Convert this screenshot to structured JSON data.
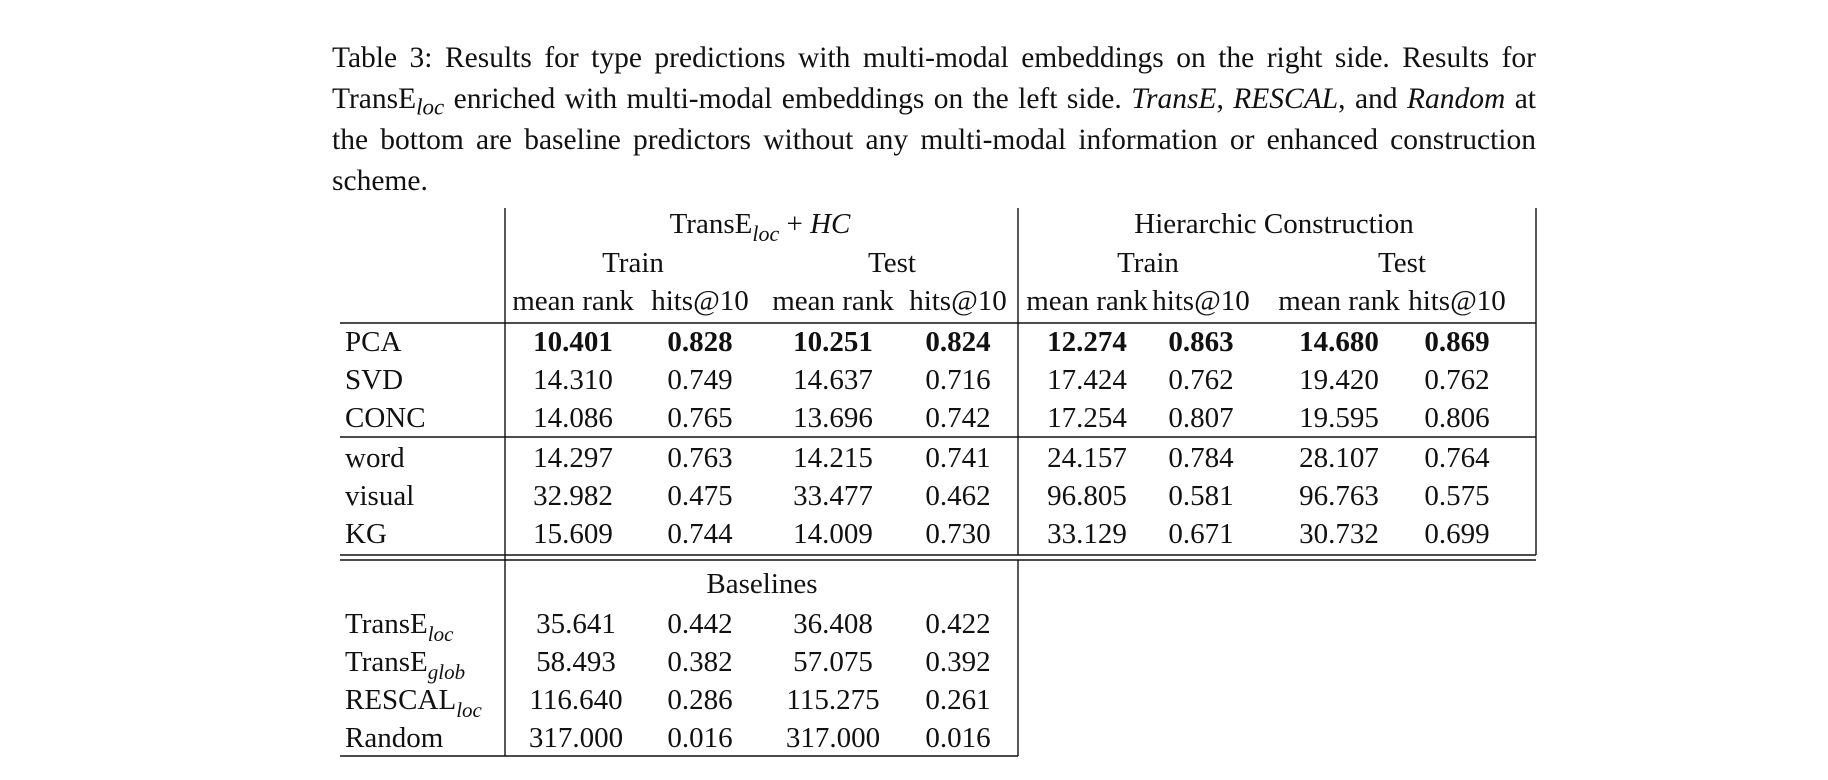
{
  "caption": {
    "prefix": "Table 3: Results for type predictions with multi-modal embeddings on the right side. Results for TransE",
    "prefix_sub": "loc",
    "middle": " enriched with multi-modal embeddings on the left side. ",
    "em1": "TransE",
    "sep1": ", ",
    "em2": "RESCAL",
    "sep2": ", and ",
    "em3": "Random",
    "suffix": " at the bottom are baseline predictors without any multi-modal information or enhanced construction scheme."
  },
  "table": {
    "group_left": {
      "base": "TransE",
      "sub": "loc",
      "rest": " + ",
      "em": "HC"
    },
    "group_right": "Hierarchic Construction",
    "subgroups": [
      "Train",
      "Test",
      "Train",
      "Test"
    ],
    "columns": [
      "mean rank",
      "hits@10",
      "mean rank",
      "hits@10",
      "mean rank",
      "hits@10",
      "mean rank",
      "hits@10"
    ],
    "sections": [
      {
        "rows": [
          {
            "label": "PCA",
            "bold": true,
            "values": [
              "10.401",
              "0.828",
              "10.251",
              "0.824",
              "12.274",
              "0.863",
              "14.680",
              "0.869"
            ]
          },
          {
            "label": "SVD",
            "bold": false,
            "values": [
              "14.310",
              "0.749",
              "14.637",
              "0.716",
              "17.424",
              "0.762",
              "19.420",
              "0.762"
            ]
          },
          {
            "label": "CONC",
            "bold": false,
            "values": [
              "14.086",
              "0.765",
              "13.696",
              "0.742",
              "17.254",
              "0.807",
              "19.595",
              "0.806"
            ]
          }
        ]
      },
      {
        "rows": [
          {
            "label": "word",
            "bold": false,
            "values": [
              "14.297",
              "0.763",
              "14.215",
              "0.741",
              "24.157",
              "0.784",
              "28.107",
              "0.764"
            ]
          },
          {
            "label": "visual",
            "bold": false,
            "values": [
              "32.982",
              "0.475",
              "33.477",
              "0.462",
              "96.805",
              "0.581",
              "96.763",
              "0.575"
            ]
          },
          {
            "label": "KG",
            "bold": false,
            "values": [
              "15.609",
              "0.744",
              "14.009",
              "0.730",
              "33.129",
              "0.671",
              "30.732",
              "0.699"
            ]
          }
        ]
      }
    ],
    "baselines_title": "Baselines",
    "baselines": [
      {
        "label": "TransE",
        "sub": "loc",
        "values": [
          "35.641",
          "0.442",
          "36.408",
          "0.422"
        ]
      },
      {
        "label": "TransE",
        "sub": "glob",
        "values": [
          "58.493",
          "0.382",
          "57.075",
          "0.392"
        ]
      },
      {
        "label": "RESCAL",
        "sub": "loc",
        "values": [
          "116.640",
          "0.286",
          "115.275",
          "0.261"
        ]
      },
      {
        "label": "Random",
        "sub": "",
        "values": [
          "317.000",
          "0.016",
          "317.000",
          "0.016"
        ]
      }
    ]
  }
}
